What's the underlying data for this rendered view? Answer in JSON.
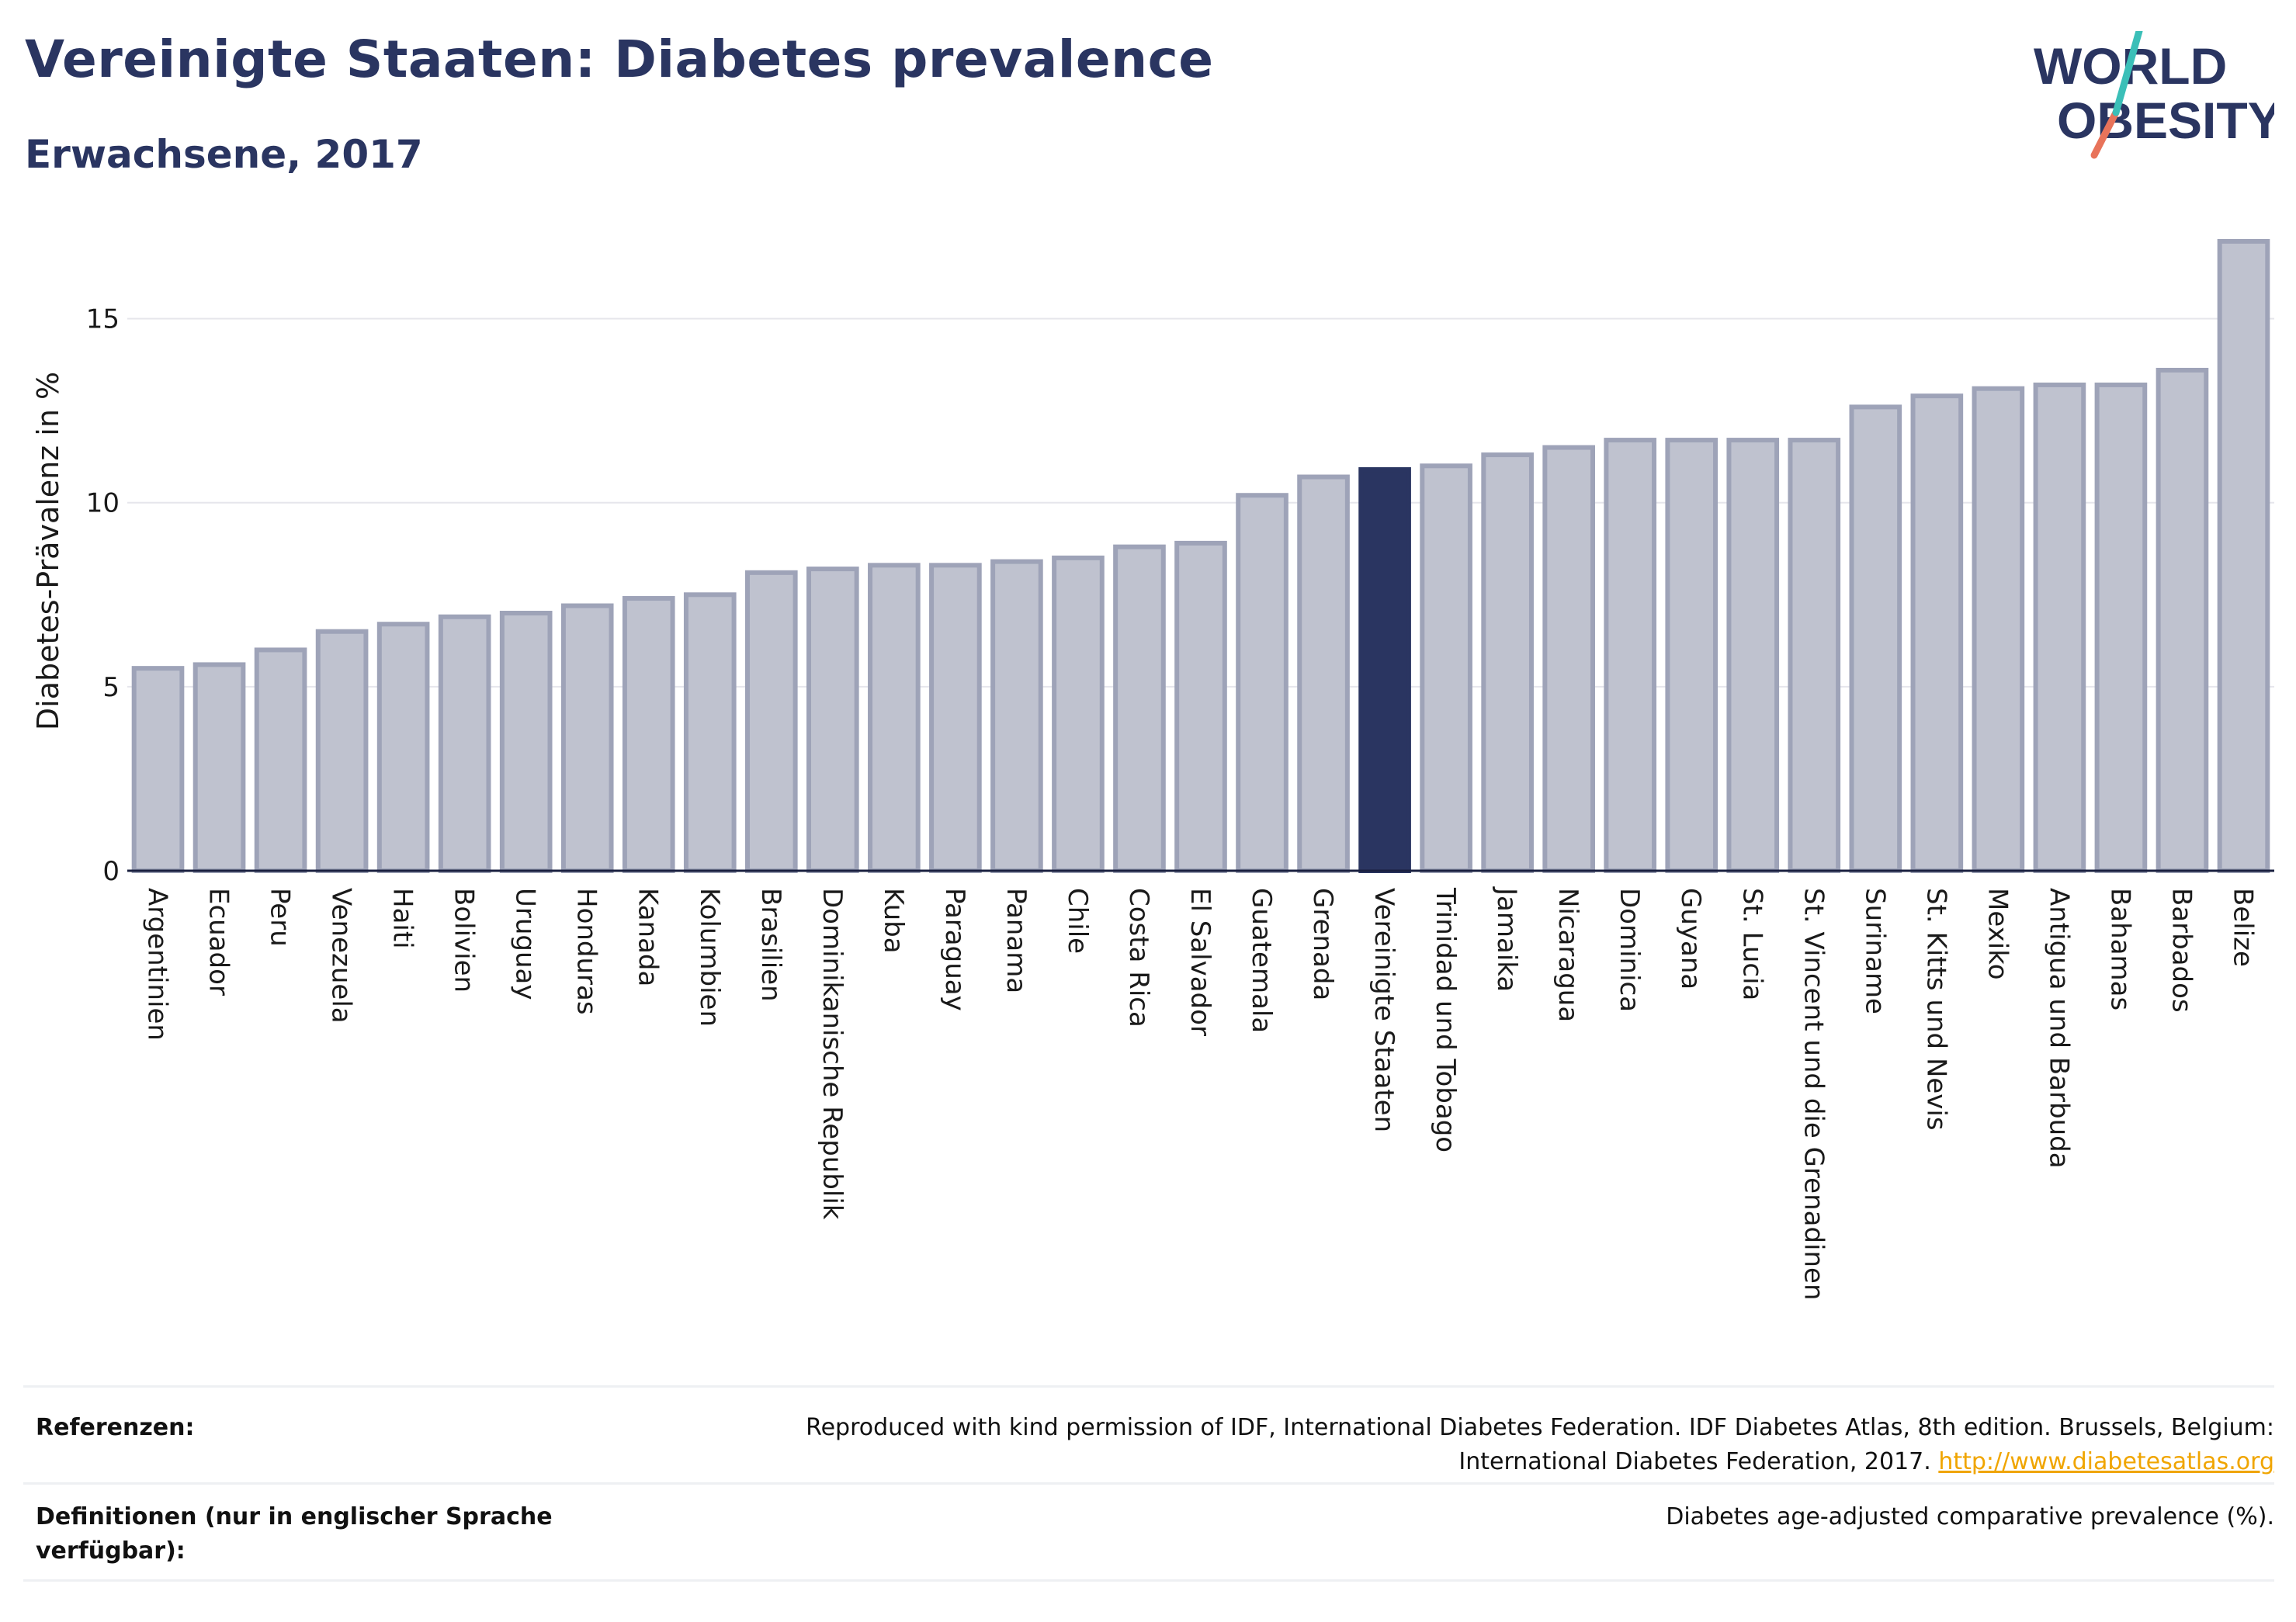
{
  "header": {
    "title": "Vereinigte Staaten: Diabetes prevalence",
    "subtitle": "Erwachsene, 2017"
  },
  "logo": {
    "line1": "WORLD",
    "line2": "OBESITY"
  },
  "colors": {
    "title": "#2a3561",
    "bar": "#bfc2cf",
    "bar_stroke": "#9ea3b8",
    "highlight": "#2a3561",
    "grid": "#e6e6ec",
    "link": "#f0a500"
  },
  "chart_data": {
    "type": "bar",
    "ylabel": "Diabetes-Prävalenz in %",
    "ylim": [
      0,
      17.5
    ],
    "yticks": [
      0,
      5,
      10,
      15
    ],
    "highlight": "Vereinigte Staaten",
    "grid": true,
    "categories": [
      "Argentinien",
      "Ecuador",
      "Peru",
      "Venezuela",
      "Haiti",
      "Bolivien",
      "Uruguay",
      "Honduras",
      "Kanada",
      "Kolumbien",
      "Brasilien",
      "Dominikanische Republik",
      "Kuba",
      "Paraguay",
      "Panama",
      "Chile",
      "Costa Rica",
      "El Salvador",
      "Guatemala",
      "Grenada",
      "Vereinigte Staaten",
      "Trinidad und Tobago",
      "Jamaika",
      "Nicaragua",
      "Dominica",
      "Guyana",
      "St. Lucia",
      "St. Vincent und die Grenadinen",
      "Suriname",
      "St. Kitts und Nevis",
      "Mexiko",
      "Antigua und Barbuda",
      "Bahamas",
      "Barbados",
      "Belize"
    ],
    "values": [
      5.5,
      5.6,
      6.0,
      6.5,
      6.7,
      6.9,
      7.0,
      7.2,
      7.4,
      7.5,
      8.1,
      8.2,
      8.3,
      8.3,
      8.4,
      8.5,
      8.8,
      8.9,
      10.2,
      10.7,
      10.9,
      11.0,
      11.3,
      11.5,
      11.7,
      11.7,
      11.7,
      11.7,
      12.6,
      12.9,
      13.1,
      13.2,
      13.2,
      13.6,
      17.1
    ]
  },
  "footer": {
    "references_label": "Referenzen:",
    "references_text_1": "Reproduced with kind permission of IDF, International Diabetes Federation. IDF Diabetes Atlas, 8th edition. Brussels, Belgium:",
    "references_text_2": "International Diabetes Federation, 2017.",
    "references_link": "http://www.diabetesatlas.org",
    "definitions_label_1": "Definitionen (nur in englischer Sprache",
    "definitions_label_2": "verfügbar):",
    "definitions_text": "Diabetes age-adjusted comparative prevalence (%)."
  }
}
